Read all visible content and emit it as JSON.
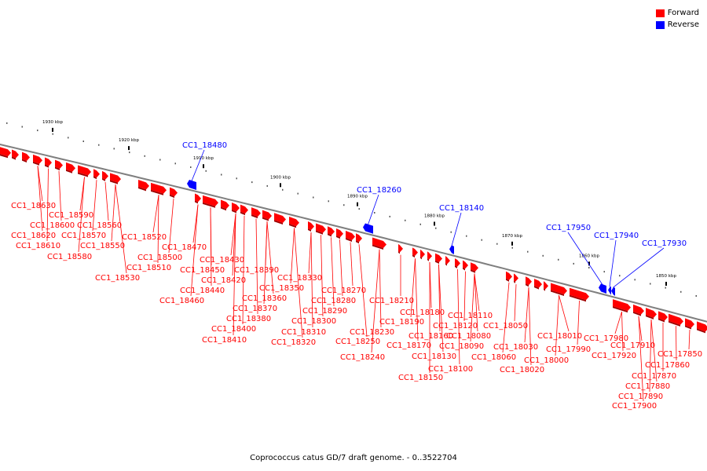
{
  "legend": [
    {
      "label": "Forward",
      "color": "#ff0000"
    },
    {
      "label": "Reverse",
      "color": "#0000ff"
    }
  ],
  "caption": "Coprococcus catus GD/7 draft genome. - 0..3522704",
  "colors": {
    "forward": "#ff0000",
    "reverse": "#0000ff",
    "backbone": "#7f7f7f"
  },
  "scale_labels": [
    "1930 kbp",
    "1920 kbp",
    "1910 kbp",
    "1900 kbp",
    "1890 kbp",
    "1880 kbp",
    "1870 kbp",
    "1860 kbp",
    "1850 kbp"
  ],
  "forward_gene_labels": [
    "CC1_18630",
    "CC1_18590",
    "CC1_18600",
    "CC1_18560",
    "CC1_18620",
    "CC1_18570",
    "CC1_18610",
    "CC1_18550",
    "CC1_18580",
    "CC1_18520",
    "CC1_18470",
    "CC1_18500",
    "CC1_18510",
    "CC1_18430",
    "CC1_18530",
    "CC1_18450",
    "CC1_18390",
    "CC1_18420",
    "CC1_18330",
    "CC1_18440",
    "CC1_18350",
    "CC1_18460",
    "CC1_18360",
    "CC1_18270",
    "CC1_18370",
    "CC1_18280",
    "CC1_18210",
    "CC1_18290",
    "CC1_18180",
    "CC1_18110",
    "CC1_18380",
    "CC1_18300",
    "CC1_18190",
    "CC1_18120",
    "CC1_18050",
    "CC1_18400",
    "CC1_18310",
    "CC1_18230",
    "CC1_18160",
    "CC1_18080",
    "CC1_18010",
    "CC1_17980",
    "CC1_18410",
    "CC1_18320",
    "CC1_18250",
    "CC1_18170",
    "CC1_18090",
    "CC1_18030",
    "CC1_17910",
    "CC1_17990",
    "CC1_17920",
    "CC1_17850",
    "CC1_18130",
    "CC1_18060",
    "CC1_18240",
    "CC1_18000",
    "CC1_17860",
    "CC1_18100",
    "CC1_18020",
    "CC1_17870",
    "CC1_18150",
    "CC1_17880",
    "CC1_17890",
    "CC1_17900"
  ],
  "reverse_gene_labels": [
    "CC1_18480",
    "CC1_18260",
    "CC1_18140",
    "CC1_17950",
    "CC1_17940",
    "CC1_17930"
  ]
}
